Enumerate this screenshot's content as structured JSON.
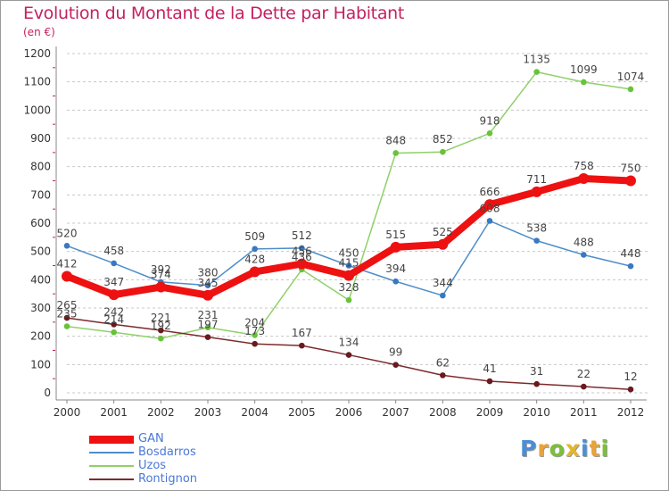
{
  "title": "Evolution du Montant de la Dette par Habitant",
  "subtitle": "(en €)",
  "logo": {
    "text": "Proxiti",
    "letters": [
      {
        "ch": "P",
        "color": "#4a8fd6"
      },
      {
        "ch": "r",
        "color": "#e8a33a"
      },
      {
        "ch": "o",
        "color": "#7bbf3a"
      },
      {
        "ch": "x",
        "color": "#e3b62f"
      },
      {
        "ch": "i",
        "color": "#4a8fd6"
      },
      {
        "ch": "t",
        "color": "#e8a33a"
      },
      {
        "ch": "i",
        "color": "#7bbf3a"
      }
    ]
  },
  "chart_data": {
    "type": "line",
    "title": "Evolution du Montant de la Dette par Habitant",
    "subtitle": "(en €)",
    "xlabel": "",
    "ylabel": "",
    "x": [
      "2000",
      "2001",
      "2002",
      "2003",
      "2004",
      "2005",
      "2006",
      "2007",
      "2008",
      "2009",
      "2010",
      "2011",
      "2012"
    ],
    "ylim": [
      0,
      1200
    ],
    "yticks": [
      0,
      100,
      200,
      300,
      400,
      500,
      600,
      700,
      800,
      900,
      1000,
      1100,
      1200
    ],
    "grid": "horizontal dashed",
    "legend_position": "bottom-left",
    "series": [
      {
        "name": "Bosdarros",
        "color": "#4e8ec9",
        "marker": "#3a78c2",
        "values": [
          520,
          458,
          392,
          380,
          509,
          512,
          450,
          394,
          344,
          608,
          538,
          488,
          448
        ]
      },
      {
        "name": "Uzos",
        "color": "#8fd06a",
        "marker": "#69c23b",
        "values": [
          235,
          214,
          192,
          231,
          204,
          436,
          328,
          848,
          852,
          918,
          1135,
          1099,
          1074
        ]
      },
      {
        "name": "Rontignon",
        "color": "#7d2a2e",
        "marker": "#6a1a1e",
        "values": [
          265,
          242,
          221,
          197,
          173,
          167,
          134,
          99,
          62,
          41,
          31,
          22,
          12
        ]
      },
      {
        "name": "GAN",
        "color": "#ee1111",
        "marker": "#ee1111",
        "values": [
          412,
          347,
          374,
          345,
          428,
          456,
          415,
          515,
          525,
          666,
          711,
          758,
          750
        ]
      }
    ],
    "legend_order": [
      "GAN",
      "Bosdarros",
      "Uzos",
      "Rontignon"
    ]
  }
}
